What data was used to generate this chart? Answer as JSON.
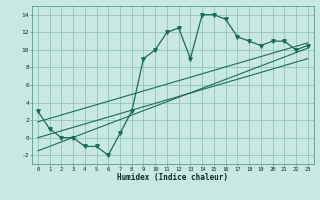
{
  "title": "",
  "xlabel": "Humidex (Indice chaleur)",
  "bg_color": "#c8e8e4",
  "grid_color": "#90c4bc",
  "line_color": "#1a6b58",
  "xlim": [
    -0.5,
    23.5
  ],
  "ylim": [
    -3.0,
    15.0
  ],
  "xticks": [
    0,
    1,
    2,
    3,
    4,
    5,
    6,
    7,
    8,
    9,
    10,
    11,
    12,
    13,
    14,
    15,
    16,
    17,
    18,
    19,
    20,
    21,
    22,
    23
  ],
  "yticks": [
    -2,
    0,
    2,
    4,
    6,
    8,
    10,
    12,
    14
  ],
  "curve_x": [
    0,
    1,
    2,
    3,
    4,
    5,
    6,
    7,
    8,
    9,
    10,
    11,
    12,
    13,
    14,
    15,
    16,
    17,
    18,
    19,
    20,
    21,
    22,
    23
  ],
  "curve_y": [
    3,
    1,
    0,
    0,
    -1,
    -1,
    -2,
    0.5,
    3,
    9,
    10,
    12,
    12.5,
    9,
    14,
    14,
    13.5,
    11.5,
    11,
    10.5,
    11,
    11,
    10,
    10.5
  ],
  "line1_x": [
    0,
    23
  ],
  "line1_y": [
    -1.5,
    10.2
  ],
  "line2_x": [
    0,
    23
  ],
  "line2_y": [
    0.0,
    9.0
  ],
  "line3_x": [
    0,
    23
  ],
  "line3_y": [
    1.8,
    10.8
  ]
}
